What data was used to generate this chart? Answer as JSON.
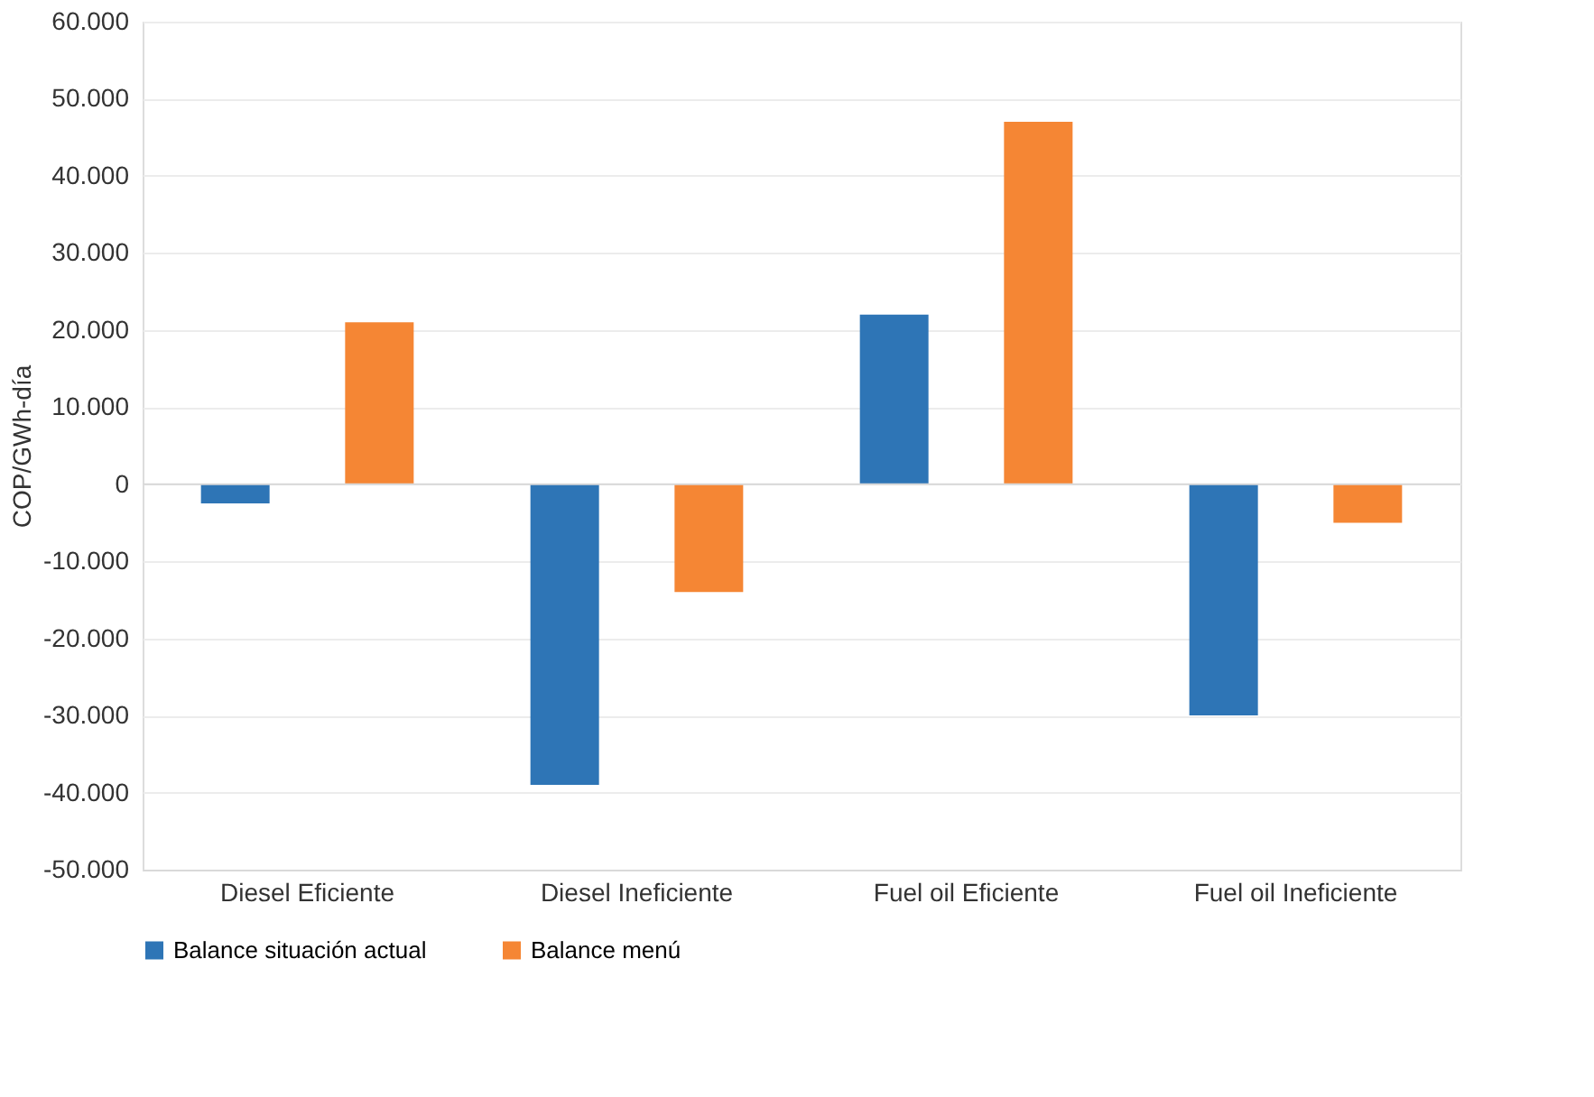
{
  "chart_data": {
    "type": "bar",
    "ylabel": "COP/GWh-día",
    "categories": [
      "Diesel Eficiente",
      "Diesel Ineficiente",
      "Fuel oil Eficiente",
      "Fuel oil Ineficiente"
    ],
    "series": [
      {
        "name": "Balance situación actual",
        "color": "#2e75b6",
        "values": [
          -2500,
          -39000,
          22000,
          -30000
        ]
      },
      {
        "name": "Balance menú",
        "color": "#f58634",
        "values": [
          21000,
          -14000,
          47000,
          -5000
        ]
      }
    ],
    "ylim": [
      -50000,
      60000
    ],
    "yticks": [
      {
        "value": 60000,
        "label": "60.000"
      },
      {
        "value": 50000,
        "label": "50.000"
      },
      {
        "value": 40000,
        "label": "40.000"
      },
      {
        "value": 30000,
        "label": "30.000"
      },
      {
        "value": 20000,
        "label": "20.000"
      },
      {
        "value": 10000,
        "label": "10.000"
      },
      0,
      {
        "value": -10000,
        "label": "-10.000"
      },
      {
        "value": -20000,
        "label": "-20.000"
      },
      {
        "value": -30000,
        "label": "-30.000"
      },
      {
        "value": -40000,
        "label": "-40.000"
      },
      {
        "value": -50000,
        "label": "-50.000"
      }
    ],
    "grid": "y",
    "legend": "bottom"
  }
}
